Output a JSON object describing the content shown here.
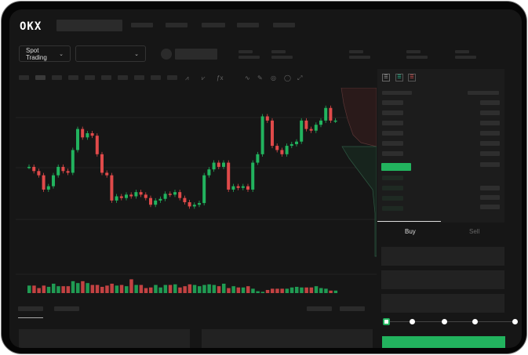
{
  "header": {
    "logo": "OKX"
  },
  "toolbar": {
    "market_type": "Spot Trading",
    "pair_select": ""
  },
  "orderbook": {
    "view_icons": [
      "orderbook-both-icon",
      "orderbook-bids-icon",
      "orderbook-asks-icon"
    ]
  },
  "trade": {
    "tabs": [
      {
        "label": "Buy",
        "active": true
      },
      {
        "label": "Sell",
        "active": false
      }
    ],
    "slider_percent": 0
  },
  "colors": {
    "up": "#22b35e",
    "down": "#e04a4a",
    "bg": "#161616",
    "panel": "#1c1c1c"
  },
  "chart_data": {
    "type": "candlestick",
    "open0": 95,
    "closes": [
      95,
      90,
      85,
      68,
      72,
      85,
      95,
      90,
      88,
      115,
      140,
      130,
      135,
      132,
      110,
      88,
      85,
      55,
      60,
      58,
      62,
      60,
      65,
      62,
      58,
      50,
      55,
      57,
      63,
      62,
      65,
      58,
      53,
      48,
      50,
      52,
      85,
      92,
      100,
      95,
      100,
      68,
      72,
      70,
      72,
      68,
      100,
      110,
      155,
      150,
      120,
      115,
      110,
      120,
      122,
      125,
      150,
      140,
      138,
      145,
      150,
      165,
      150,
      150
    ],
    "volume": [
      12,
      12,
      8,
      12,
      10,
      15,
      11,
      11,
      11,
      19,
      16,
      19,
      16,
      13,
      13,
      10,
      12,
      15,
      12,
      13,
      11,
      22,
      13,
      13,
      8,
      9,
      13,
      9,
      13,
      13,
      14,
      9,
      11,
      14,
      13,
      11,
      13,
      14,
      13,
      11,
      15,
      8,
      11,
      9,
      9,
      11,
      7,
      3,
      2,
      5,
      7,
      7,
      7,
      7,
      9,
      10,
      9,
      9,
      9,
      11,
      8,
      7,
      4,
      4
    ]
  }
}
